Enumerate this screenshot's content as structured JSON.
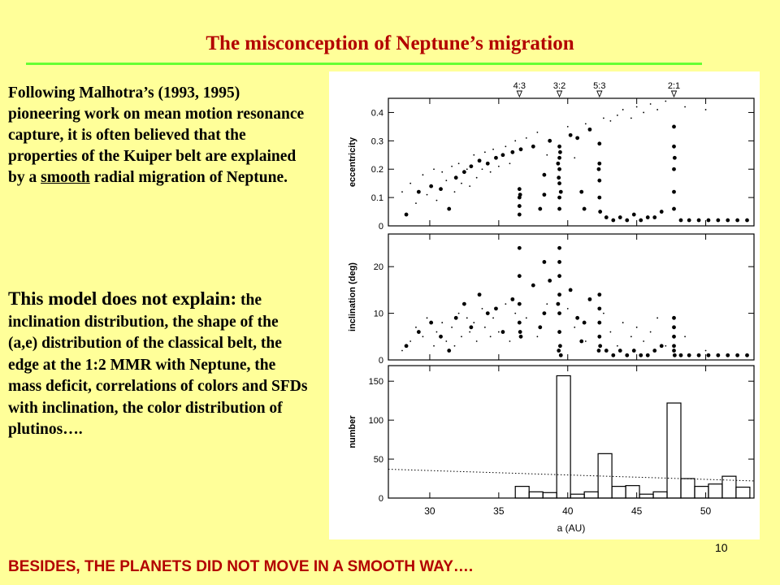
{
  "slide": {
    "title": "The misconception of Neptune’s migration",
    "para1_a": "Following Malhotra’s (1993, 1995) pioneering work on mean motion resonance capture, it is often believed that the properties of the Kuiper belt are explained by a ",
    "para1_smooth": "smooth",
    "para1_b": " radial migration of Neptune.",
    "para2_lead": "This model does not explain:",
    "para2_rest": " the inclination distribution, the shape of the (a,e) distribution of the classical belt, the edge at the 1:2 MMR with Neptune, the mass deficit, correlations of colors and SFDs with inclination, the color distribution of plutinos….",
    "page_number": "10",
    "footer": "BESIDES, THE PLANETS DID NOT MOVE IN A SMOOTH WAY…."
  },
  "colors": {
    "title": "#b30000",
    "background": "#ffff99",
    "rule": "#66ff33",
    "footer": "#b30000"
  },
  "chart_data": {
    "type": "scatter",
    "xlabel": "a (AU)",
    "xlim": [
      27,
      53.5
    ],
    "xticks": [
      30,
      35,
      40,
      45,
      50
    ],
    "resonances": [
      {
        "label": "4:3",
        "a": 36.5
      },
      {
        "label": "3:2",
        "a": 39.4
      },
      {
        "label": "5:3",
        "a": 42.3
      },
      {
        "label": "2:1",
        "a": 47.7
      }
    ],
    "panels": [
      {
        "ylabel": "eccentricity",
        "ylim": [
          0,
          0.45
        ],
        "yticks": [
          0,
          0.1,
          0.2,
          0.3,
          0.4
        ],
        "tick_labels": [
          "0",
          "0.1",
          "0.2",
          "0.3",
          "0.4"
        ]
      },
      {
        "ylabel": "inclination (deg)",
        "ylim": [
          0,
          27
        ],
        "yticks": [
          0,
          10,
          20
        ],
        "tick_labels": [
          "0",
          "10",
          "20"
        ]
      },
      {
        "ylabel": "number",
        "type": "histogram",
        "ylim": [
          0,
          170
        ],
        "yticks": [
          0,
          50,
          100,
          150
        ],
        "tick_labels": [
          "0",
          "50",
          "100",
          "150"
        ],
        "bin_edges": [
          36.2,
          37.2,
          38.2,
          39.2,
          40.2,
          41.2,
          42.2,
          43.2,
          44.2,
          45.2,
          46.2,
          47.2,
          48.2,
          49.2,
          50.2,
          51.2,
          52.2,
          53.2
        ],
        "counts": [
          15,
          8,
          7,
          157,
          5,
          8,
          57,
          15,
          16,
          5,
          8,
          122,
          25,
          15,
          18,
          28,
          14
        ],
        "reference_line": {
          "style": "dotted",
          "x": [
            27,
            53.5
          ],
          "y": [
            37,
            22
          ]
        }
      }
    ],
    "points_dynamic": [
      [
        28.3,
        0.04,
        3
      ],
      [
        29.2,
        0.12,
        6
      ],
      [
        30.1,
        0.14,
        8
      ],
      [
        30.8,
        0.13,
        5
      ],
      [
        31.4,
        0.06,
        2
      ],
      [
        31.9,
        0.17,
        9
      ],
      [
        32.5,
        0.19,
        12
      ],
      [
        33.0,
        0.21,
        7
      ],
      [
        33.6,
        0.23,
        14
      ],
      [
        34.2,
        0.22,
        10
      ],
      [
        34.8,
        0.24,
        11
      ],
      [
        35.3,
        0.25,
        6
      ],
      [
        36.0,
        0.26,
        13
      ],
      [
        36.6,
        0.27,
        5
      ],
      [
        36.5,
        0.13,
        24
      ],
      [
        36.5,
        0.1,
        18
      ],
      [
        36.5,
        0.07,
        12
      ],
      [
        36.5,
        0.04,
        8
      ],
      [
        36.55,
        0.11,
        6
      ],
      [
        37.5,
        0.28,
        16
      ],
      [
        38.0,
        0.06,
        7
      ],
      [
        38.3,
        0.18,
        10
      ],
      [
        38.7,
        0.3,
        17
      ],
      [
        38.3,
        0.11,
        21
      ],
      [
        39.4,
        0.28,
        24
      ],
      [
        39.4,
        0.24,
        21
      ],
      [
        39.4,
        0.2,
        18
      ],
      [
        39.4,
        0.15,
        14
      ],
      [
        39.4,
        0.1,
        10
      ],
      [
        39.4,
        0.06,
        6
      ],
      [
        39.45,
        0.26,
        3
      ],
      [
        39.35,
        0.17,
        2
      ],
      [
        39.5,
        0.12,
        1
      ],
      [
        39.3,
        0.22,
        12
      ],
      [
        40.2,
        0.32,
        15
      ],
      [
        40.7,
        0.31,
        9
      ],
      [
        41.0,
        0.12,
        4
      ],
      [
        41.2,
        0.06,
        8
      ],
      [
        41.6,
        0.34,
        13
      ],
      [
        42.3,
        0.29,
        14
      ],
      [
        42.3,
        0.22,
        11
      ],
      [
        42.3,
        0.16,
        8
      ],
      [
        42.3,
        0.1,
        5
      ],
      [
        42.35,
        0.05,
        3
      ],
      [
        42.25,
        0.2,
        2
      ],
      [
        42.8,
        0.03,
        2
      ],
      [
        43.3,
        0.02,
        1
      ],
      [
        43.8,
        0.03,
        2
      ],
      [
        44.3,
        0.02,
        1
      ],
      [
        44.8,
        0.04,
        2
      ],
      [
        45.3,
        0.02,
        1
      ],
      [
        45.8,
        0.03,
        1
      ],
      [
        46.3,
        0.03,
        2
      ],
      [
        46.8,
        0.05,
        3
      ],
      [
        47.7,
        0.35,
        9
      ],
      [
        47.7,
        0.28,
        7
      ],
      [
        47.7,
        0.2,
        5
      ],
      [
        47.7,
        0.12,
        3
      ],
      [
        47.7,
        0.06,
        2
      ],
      [
        47.75,
        0.24,
        1
      ],
      [
        48.2,
        0.02,
        1
      ],
      [
        48.8,
        0.02,
        1
      ],
      [
        49.5,
        0.02,
        1
      ],
      [
        50.2,
        0.02,
        1
      ],
      [
        50.9,
        0.02,
        1
      ],
      [
        51.6,
        0.02,
        1
      ],
      [
        52.3,
        0.02,
        1
      ],
      [
        53.0,
        0.02,
        1
      ]
    ],
    "points_background": [
      [
        28.0,
        0.12,
        2
      ],
      [
        28.6,
        0.15,
        4
      ],
      [
        29.0,
        0.08,
        7
      ],
      [
        29.5,
        0.18,
        5
      ],
      [
        29.8,
        0.11,
        9
      ],
      [
        30.3,
        0.2,
        3
      ],
      [
        30.5,
        0.09,
        6
      ],
      [
        30.9,
        0.19,
        8
      ],
      [
        31.2,
        0.16,
        4
      ],
      [
        31.6,
        0.21,
        7
      ],
      [
        31.8,
        0.12,
        3
      ],
      [
        32.1,
        0.22,
        10
      ],
      [
        32.3,
        0.15,
        5
      ],
      [
        32.7,
        0.2,
        9
      ],
      [
        32.9,
        0.14,
        6
      ],
      [
        33.2,
        0.25,
        8
      ],
      [
        33.4,
        0.17,
        4
      ],
      [
        33.8,
        0.2,
        11
      ],
      [
        34.0,
        0.26,
        7
      ],
      [
        34.4,
        0.19,
        5
      ],
      [
        34.6,
        0.27,
        9
      ],
      [
        35.0,
        0.21,
        6
      ],
      [
        35.5,
        0.28,
        12
      ],
      [
        35.8,
        0.22,
        4
      ],
      [
        36.2,
        0.3,
        10
      ],
      [
        37.0,
        0.31,
        9
      ],
      [
        37.8,
        0.33,
        5
      ],
      [
        38.5,
        0.25,
        12
      ],
      [
        40.0,
        0.35,
        11
      ],
      [
        40.5,
        0.24,
        7
      ],
      [
        41.3,
        0.36,
        4
      ],
      [
        42.6,
        0.38,
        10
      ],
      [
        43.1,
        0.37,
        6
      ],
      [
        43.6,
        0.39,
        3
      ],
      [
        44.0,
        0.41,
        8
      ],
      [
        44.6,
        0.38,
        5
      ],
      [
        45.0,
        0.42,
        7
      ],
      [
        45.5,
        0.4,
        4
      ],
      [
        46.0,
        0.43,
        6
      ],
      [
        46.5,
        0.41,
        9
      ],
      [
        47.1,
        0.44,
        3
      ],
      [
        48.5,
        0.42,
        5
      ],
      [
        50.0,
        0.41,
        2
      ]
    ]
  }
}
